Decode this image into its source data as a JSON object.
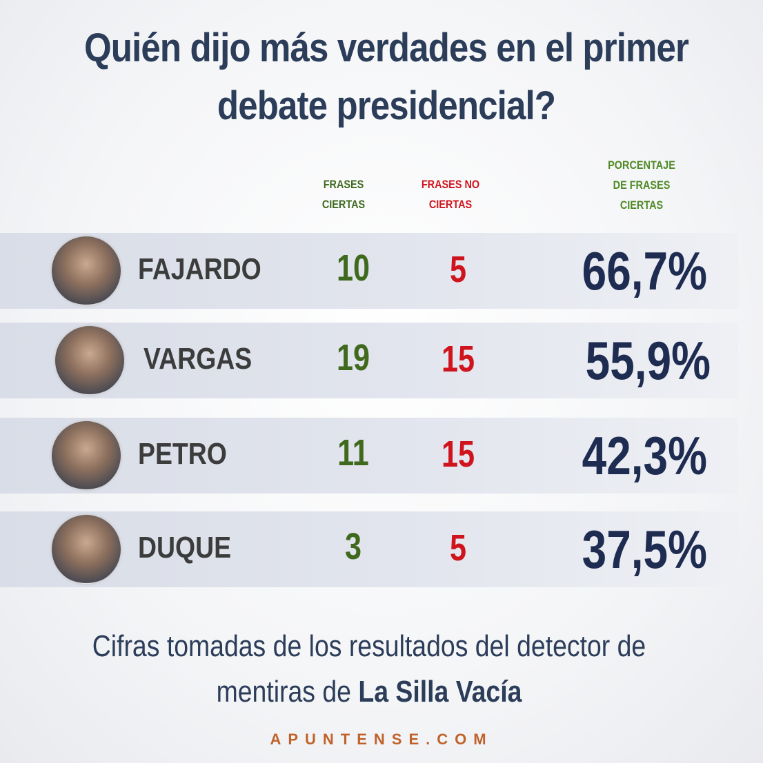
{
  "title": "Quién dijo más verdades en el primer debate presidencial?",
  "columns": {
    "true": "FRASES CIERTAS",
    "false": "FRASES NO CIERTAS",
    "percent": "PORCENTAJE DE FRASES CIERTAS"
  },
  "rows": [
    {
      "name": "FAJARDO",
      "true": "10",
      "false": "5",
      "percent": "66,7%"
    },
    {
      "name": "VARGAS",
      "true": "19",
      "false": "15",
      "percent": "55,9%"
    },
    {
      "name": "PETRO",
      "true": "11",
      "false": "15",
      "percent": "42,3%"
    },
    {
      "name": "DUQUE",
      "true": "3",
      "false": "5",
      "percent": "37,5%"
    }
  ],
  "footer": {
    "text": "Cifras tomadas de los resultados del detector de mentiras de",
    "source": "La Silla Vacía"
  },
  "site": "APUNTENSE.COM"
}
